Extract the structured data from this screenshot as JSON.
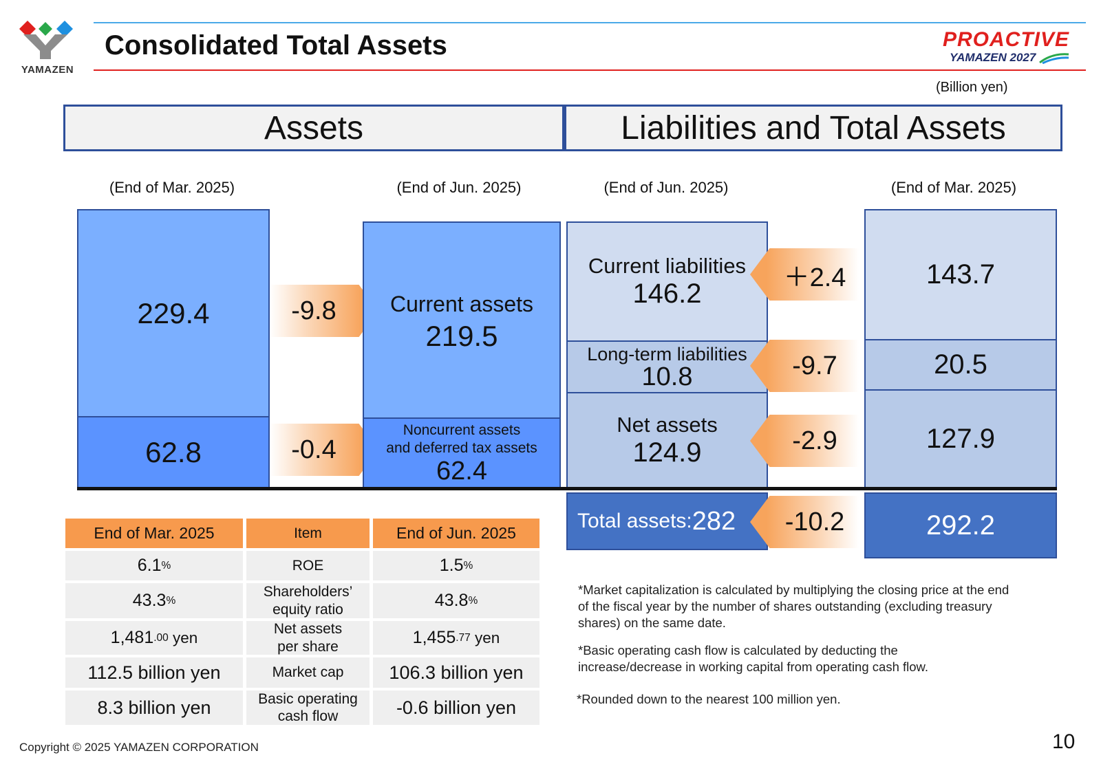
{
  "header": {
    "logo_text": "YAMAZEN",
    "title": "Consolidated Total Assets",
    "brand_line1": "PROACTIVE",
    "brand_line2": "YAMAZEN 2027",
    "unit": "(Billion yen)"
  },
  "colors": {
    "accent_blue": "#2e4f9a",
    "asset_current": "#7bafff",
    "asset_noncurrent": "#5b93ff",
    "liab_light": "#d0dcf0",
    "liab_mid": "#b7cae8",
    "total_blue": "#4472c4",
    "orange": "#f79a4d",
    "title_line_red": "#e0201e"
  },
  "sections": {
    "assets": "Assets",
    "liabilities": "Liabilities and Total Assets"
  },
  "periods": {
    "assets_prev": "(End of Mar. 2025)",
    "assets_curr": "(End of Jun. 2025)",
    "liab_curr": "(End of Jun. 2025)",
    "liab_prev": "(End of Mar. 2025)"
  },
  "assets": {
    "prev_current": "229.4",
    "prev_noncurrent": "62.8",
    "change_current": "-9.8",
    "change_noncurrent": "-0.4",
    "curr_current_label": "Current assets",
    "curr_current_value": "219.5",
    "curr_noncurrent_label_1": "Noncurrent assets",
    "curr_noncurrent_label_2": "and deferred tax assets",
    "curr_noncurrent_value": "62.4"
  },
  "liabilities": {
    "current_label": "Current liabilities",
    "current_value": "146.2",
    "current_change": "＋2.4",
    "current_prev": "143.7",
    "longterm_label": "Long-term liabilities",
    "longterm_value": "10.8",
    "longterm_change": "-9.7",
    "longterm_prev": "20.5",
    "net_label": "Net assets",
    "net_value": "124.9",
    "net_change": "-2.9",
    "net_prev": "127.9",
    "total_label": "Total assets: ",
    "total_value": "282",
    "total_change": "-10.2",
    "total_prev": "292.2"
  },
  "table": {
    "headers": [
      "End of Mar. 2025",
      "Item",
      "End of Jun. 2025"
    ],
    "rows": [
      {
        "prev_main": "6.1",
        "prev_small": "%",
        "prev_suffix": "",
        "item": "ROE",
        "curr_main": "1.5",
        "curr_small": "%",
        "curr_suffix": ""
      },
      {
        "prev_main": "43.3",
        "prev_small": "%",
        "prev_suffix": "",
        "item": "Shareholders’ equity ratio",
        "curr_main": "43.8",
        "curr_small": "%",
        "curr_suffix": ""
      },
      {
        "prev_main": "1,481",
        "prev_small": ".00",
        "prev_suffix": " yen",
        "item": "Net assets per share",
        "curr_main": "1,455",
        "curr_small": ".77",
        "curr_suffix": " yen"
      },
      {
        "prev_main": "112.5 billion yen",
        "prev_small": "",
        "prev_suffix": "",
        "item": "Market cap",
        "curr_main": "106.3 billion yen",
        "curr_small": "",
        "curr_suffix": ""
      },
      {
        "prev_main": "8.3 billion yen",
        "prev_small": "",
        "prev_suffix": "",
        "item": "Basic operating cash flow",
        "curr_main": "-0.6 billion yen",
        "curr_small": "",
        "curr_suffix": ""
      }
    ]
  },
  "notes": [
    "*Market capitalization is calculated by multiplying the closing price at the end of the fiscal year by the number of shares outstanding (excluding treasury shares) on the same date.",
    "*Basic operating cash flow is calculated by deducting the increase/decrease in working capital from operating cash flow.",
    "*Rounded down to the nearest 100 million yen."
  ],
  "footer": {
    "copyright": "Copyright © 2025 YAMAZEN CORPORATION",
    "page_number": "10"
  }
}
